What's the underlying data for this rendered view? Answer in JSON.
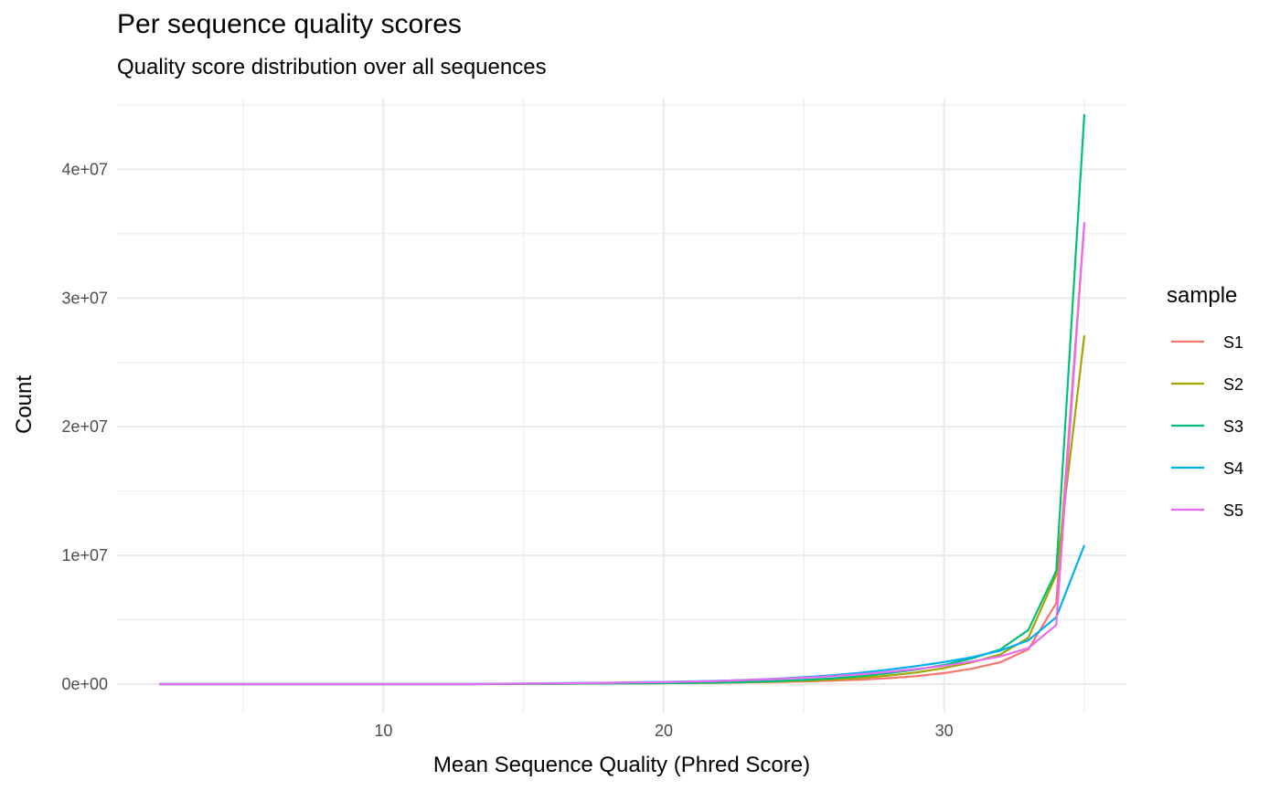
{
  "chart_data": {
    "type": "line",
    "title": "Per sequence quality scores",
    "subtitle": "Quality score distribution over all sequences",
    "xlabel": "Mean Sequence Quality (Phred Score)",
    "ylabel": "Count",
    "xlim": [
      0.5,
      36.5
    ],
    "ylim": [
      -2200000,
      45500000
    ],
    "x_major_ticks": [
      10,
      20,
      30
    ],
    "x_minor_ticks": [
      5,
      15,
      25,
      35
    ],
    "y_major_ticks": [
      {
        "value": 0,
        "label": "0e+00"
      },
      {
        "value": 10000000,
        "label": "1e+07"
      },
      {
        "value": 20000000,
        "label": "2e+07"
      },
      {
        "value": 30000000,
        "label": "3e+07"
      },
      {
        "value": 40000000,
        "label": "4e+07"
      }
    ],
    "y_minor_ticks": [
      5000000,
      15000000,
      25000000,
      35000000,
      45000000
    ],
    "legend_title": "sample",
    "x": [
      2,
      3,
      4,
      5,
      6,
      7,
      8,
      9,
      10,
      11,
      12,
      13,
      14,
      15,
      16,
      17,
      18,
      19,
      20,
      21,
      22,
      23,
      24,
      25,
      26,
      27,
      28,
      29,
      30,
      31,
      32,
      33,
      34,
      35
    ],
    "series": [
      {
        "name": "S1",
        "color": "#F8766D",
        "values": [
          0,
          0,
          0,
          0,
          0,
          0,
          0,
          0,
          0,
          0,
          0,
          0,
          10000,
          20000,
          30000,
          40000,
          50000,
          60000,
          70000,
          90000,
          110000,
          140000,
          170000,
          210000,
          270000,
          350000,
          460000,
          620000,
          860000,
          1200000,
          1700000,
          2700000,
          6300000,
          35800000
        ]
      },
      {
        "name": "S2",
        "color": "#A3A500",
        "values": [
          0,
          0,
          0,
          0,
          0,
          0,
          0,
          0,
          0,
          0,
          0,
          0,
          10000,
          20000,
          30000,
          40000,
          50000,
          60000,
          70000,
          90000,
          110000,
          150000,
          200000,
          270000,
          360000,
          490000,
          660000,
          900000,
          1250000,
          1700000,
          2300000,
          3600000,
          8500000,
          27100000
        ]
      },
      {
        "name": "S3",
        "color": "#00BF7D",
        "values": [
          0,
          0,
          0,
          0,
          0,
          0,
          0,
          0,
          0,
          0,
          0,
          0,
          10000,
          20000,
          30000,
          40000,
          50000,
          60000,
          80000,
          100000,
          130000,
          180000,
          240000,
          330000,
          450000,
          620000,
          840000,
          1120000,
          1500000,
          2000000,
          2700000,
          4200000,
          8800000,
          44300000
        ]
      },
      {
        "name": "S4",
        "color": "#00B0F6",
        "values": [
          0,
          0,
          0,
          0,
          0,
          0,
          0,
          0,
          0,
          0,
          0,
          0,
          30000,
          50000,
          70000,
          90000,
          110000,
          140000,
          170000,
          210000,
          260000,
          330000,
          420000,
          540000,
          690000,
          880000,
          1120000,
          1400000,
          1720000,
          2100000,
          2600000,
          3400000,
          5200000,
          10800000
        ]
      },
      {
        "name": "S5",
        "color": "#E76BF3",
        "values": [
          0,
          0,
          0,
          0,
          0,
          0,
          0,
          0,
          0,
          0,
          0,
          0,
          20000,
          40000,
          60000,
          80000,
          100000,
          130000,
          160000,
          200000,
          250000,
          320000,
          400000,
          500000,
          620000,
          770000,
          950000,
          1170000,
          1430000,
          1760000,
          2150000,
          2800000,
          4600000,
          35900000
        ]
      }
    ]
  }
}
